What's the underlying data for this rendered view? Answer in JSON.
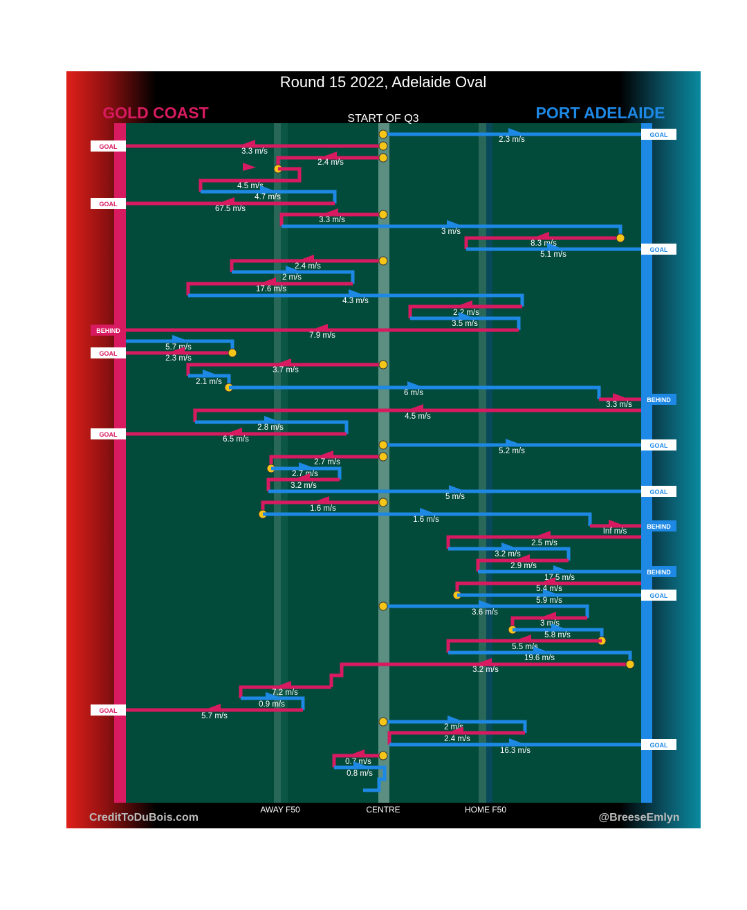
{
  "title": "Round 15 2022, Adelaide Oval",
  "subtitle": "START OF Q3",
  "teams": {
    "left": {
      "name": "GOLD COAST",
      "color": "#d81b60"
    },
    "right": {
      "name": "PORT ADELAIDE",
      "color": "#1e88e5"
    }
  },
  "axis_labels": [
    "AWAY F50",
    "CENTRE",
    "HOME F50"
  ],
  "credits": {
    "left": "CreditToDuBois.com",
    "right": "@BreeseEmlyn"
  },
  "colors": {
    "field": "#024a3a",
    "gold_coast": "#d81b60",
    "port_adelaide": "#1e88e5",
    "ball_up": "#f5c518"
  },
  "chart_data": {
    "type": "chain-flow",
    "title": "Round 15 2022, Adelaide Oval",
    "subtitle": "START OF Q3",
    "x_axis": {
      "ticks": [
        "AWAY F50",
        "CENTRE",
        "HOME F50"
      ]
    },
    "segments": [
      {
        "team": "port_adelaide",
        "speed": "2.3 m/s",
        "outcome": "GOAL"
      },
      {
        "team": "gold_coast",
        "speed": "3.3 m/s",
        "outcome": "GOAL"
      },
      {
        "team": "gold_coast",
        "speed": "2.4 m/s",
        "outcome": ""
      },
      {
        "team": "gold_coast",
        "speed": "4.5 m/s",
        "outcome": ""
      },
      {
        "team": "port_adelaide",
        "speed": "4.7 m/s",
        "outcome": ""
      },
      {
        "team": "gold_coast",
        "speed": "67.5 m/s",
        "outcome": "GOAL"
      },
      {
        "team": "gold_coast",
        "speed": "3.3 m/s",
        "outcome": ""
      },
      {
        "team": "port_adelaide",
        "speed": "3 m/s",
        "outcome": ""
      },
      {
        "team": "gold_coast",
        "speed": "8.3 m/s",
        "outcome": ""
      },
      {
        "team": "port_adelaide",
        "speed": "5.1 m/s",
        "outcome": "GOAL"
      },
      {
        "team": "gold_coast",
        "speed": "2.4 m/s",
        "outcome": ""
      },
      {
        "team": "port_adelaide",
        "speed": "2 m/s",
        "outcome": ""
      },
      {
        "team": "gold_coast",
        "speed": "17.6 m/s",
        "outcome": ""
      },
      {
        "team": "port_adelaide",
        "speed": "4.3 m/s",
        "outcome": ""
      },
      {
        "team": "gold_coast",
        "speed": "2.2 m/s",
        "outcome": ""
      },
      {
        "team": "port_adelaide",
        "speed": "3.5 m/s",
        "outcome": ""
      },
      {
        "team": "gold_coast",
        "speed": "7.9 m/s",
        "outcome": "BEHIND"
      },
      {
        "team": "port_adelaide",
        "speed": "5.7 m/s",
        "outcome": ""
      },
      {
        "team": "gold_coast",
        "speed": "2.3 m/s",
        "outcome": "GOAL"
      },
      {
        "team": "gold_coast",
        "speed": "3.7 m/s",
        "outcome": ""
      },
      {
        "team": "port_adelaide",
        "speed": "2.1 m/s",
        "outcome": ""
      },
      {
        "team": "port_adelaide",
        "speed": "6 m/s",
        "outcome": ""
      },
      {
        "team": "gold_coast",
        "speed": "3.3 m/s",
        "outcome": ""
      },
      {
        "team": "port_adelaide",
        "speed": "",
        "outcome": "BEHIND"
      },
      {
        "team": "gold_coast",
        "speed": "4.5 m/s",
        "outcome": ""
      },
      {
        "team": "port_adelaide",
        "speed": "2.8 m/s",
        "outcome": ""
      },
      {
        "team": "gold_coast",
        "speed": "6.5 m/s",
        "outcome": "GOAL"
      },
      {
        "team": "port_adelaide",
        "speed": "5.2 m/s",
        "outcome": "GOAL"
      },
      {
        "team": "gold_coast",
        "speed": "2.7 m/s",
        "outcome": ""
      },
      {
        "team": "port_adelaide",
        "speed": "2.7 m/s",
        "outcome": ""
      },
      {
        "team": "gold_coast",
        "speed": "3.2 m/s",
        "outcome": ""
      },
      {
        "team": "port_adelaide",
        "speed": "5 m/s",
        "outcome": "GOAL"
      },
      {
        "team": "gold_coast",
        "speed": "1.6 m/s",
        "outcome": ""
      },
      {
        "team": "port_adelaide",
        "speed": "1.6 m/s",
        "outcome": ""
      },
      {
        "team": "gold_coast",
        "speed": "Inf m/s",
        "outcome": ""
      },
      {
        "team": "port_adelaide",
        "speed": "",
        "outcome": "BEHIND"
      },
      {
        "team": "gold_coast",
        "speed": "2.5 m/s",
        "outcome": ""
      },
      {
        "team": "port_adelaide",
        "speed": "3.2 m/s",
        "outcome": ""
      },
      {
        "team": "gold_coast",
        "speed": "2.9 m/s",
        "outcome": ""
      },
      {
        "team": "port_adelaide",
        "speed": "17.5 m/s",
        "outcome": "BEHIND"
      },
      {
        "team": "gold_coast",
        "speed": "5.4 m/s",
        "outcome": ""
      },
      {
        "team": "port_adelaide",
        "speed": "5.9 m/s",
        "outcome": "GOAL"
      },
      {
        "team": "port_adelaide",
        "speed": "3.6 m/s",
        "outcome": ""
      },
      {
        "team": "gold_coast",
        "speed": "3 m/s",
        "outcome": ""
      },
      {
        "team": "port_adelaide",
        "speed": "5.8 m/s",
        "outcome": ""
      },
      {
        "team": "gold_coast",
        "speed": "5.5 m/s",
        "outcome": ""
      },
      {
        "team": "port_adelaide",
        "speed": "19.6 m/s",
        "outcome": ""
      },
      {
        "team": "gold_coast",
        "speed": "3.2 m/s",
        "outcome": ""
      },
      {
        "team": "gold_coast",
        "speed": "7.2 m/s",
        "outcome": ""
      },
      {
        "team": "port_adelaide",
        "speed": "0.9 m/s",
        "outcome": ""
      },
      {
        "team": "gold_coast",
        "speed": "5.7 m/s",
        "outcome": "GOAL"
      },
      {
        "team": "port_adelaide",
        "speed": "2 m/s",
        "outcome": ""
      },
      {
        "team": "gold_coast",
        "speed": "2.4 m/s",
        "outcome": ""
      },
      {
        "team": "port_adelaide",
        "speed": "16.3 m/s",
        "outcome": "GOAL"
      },
      {
        "team": "gold_coast",
        "speed": "0.7 m/s",
        "outcome": ""
      },
      {
        "team": "port_adelaide",
        "speed": "0.8 m/s",
        "outcome": ""
      }
    ]
  }
}
